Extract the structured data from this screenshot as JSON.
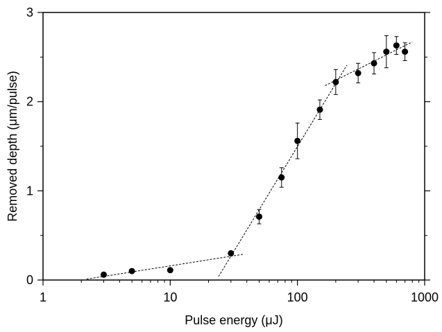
{
  "chart_data": {
    "type": "scatter",
    "title": "",
    "xlabel": "Pulse energy (μJ)",
    "ylabel": "Removed depth (μm/pulse)",
    "x_scale": "log",
    "xlim": [
      1,
      1000
    ],
    "ylim": [
      0,
      3
    ],
    "x_tick_values": [
      1,
      10,
      100,
      1000
    ],
    "x_tick_labels": [
      "1",
      "10",
      "100",
      "1000"
    ],
    "y_tick_values": [
      0,
      1,
      2,
      3
    ],
    "y_tick_labels": [
      "0",
      "1",
      "2",
      "3"
    ],
    "grid": false,
    "legend": "none",
    "series": [
      {
        "marker": "filled-circle",
        "color": "#000000",
        "points": [
          {
            "x": 3,
            "y": 0.06,
            "err": 0
          },
          {
            "x": 5,
            "y": 0.1,
            "err": 0
          },
          {
            "x": 10,
            "y": 0.11,
            "err": 0
          },
          {
            "x": 30,
            "y": 0.3,
            "err": 0
          },
          {
            "x": 50,
            "y": 0.71,
            "err": 0.08
          },
          {
            "x": 75,
            "y": 1.15,
            "err": 0.11
          },
          {
            "x": 100,
            "y": 1.56,
            "err": 0.2
          },
          {
            "x": 150,
            "y": 1.91,
            "err": 0.11
          },
          {
            "x": 200,
            "y": 2.22,
            "err": 0.14
          },
          {
            "x": 300,
            "y": 2.32,
            "err": 0.11
          },
          {
            "x": 400,
            "y": 2.43,
            "err": 0.12
          },
          {
            "x": 500,
            "y": 2.56,
            "err": 0.18
          },
          {
            "x": 600,
            "y": 2.63,
            "err": 0.1
          },
          {
            "x": 700,
            "y": 2.56,
            "err": 0.1
          }
        ]
      }
    ],
    "fit_lines": [
      {
        "style": "dashed",
        "x": [
          2.2,
          38
        ],
        "y": [
          0.01,
          0.29
        ]
      },
      {
        "style": "dashed",
        "x": [
          24,
          245
        ],
        "y": [
          0.04,
          2.41
        ]
      },
      {
        "style": "dashed",
        "x": [
          165,
          800
        ],
        "y": [
          2.18,
          2.67
        ]
      }
    ]
  }
}
